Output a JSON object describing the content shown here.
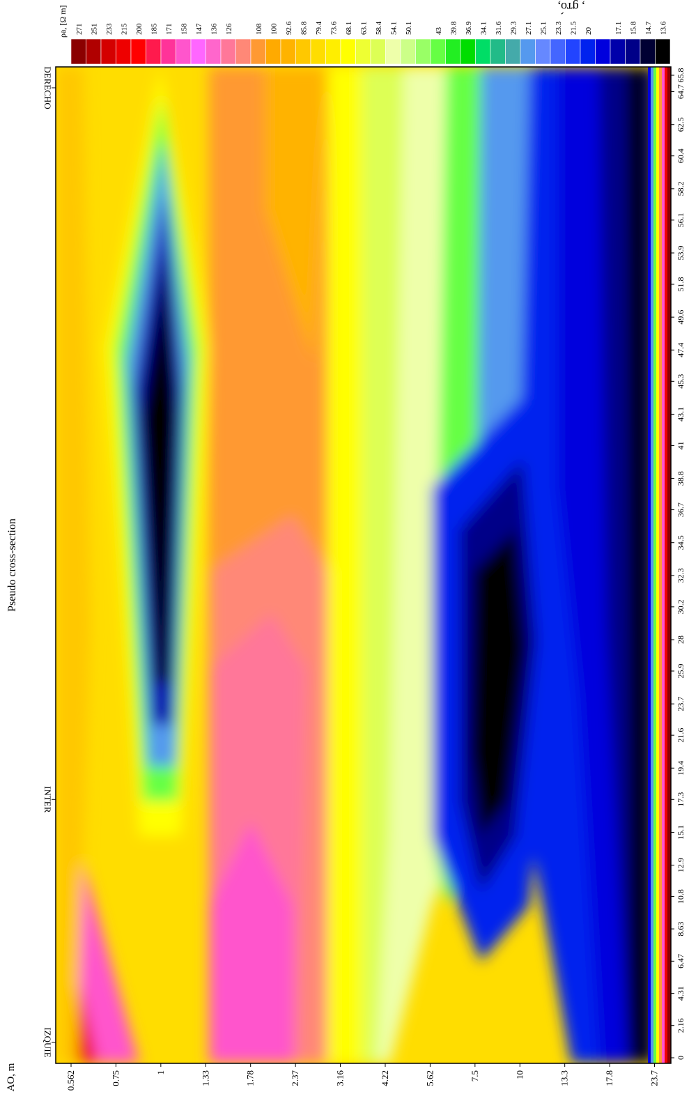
{
  "chart_data": {
    "type": "heatmap",
    "title": "Pseudo cross-section",
    "header_fragment": ", ɡто́,",
    "depth_axis": {
      "label": "AO, m",
      "ticks": [
        "0.562",
        "0.75",
        "1",
        "1.33",
        "1.78",
        "2.37",
        "3.16",
        "4.22",
        "5.62",
        "7.5",
        "10",
        "13.3",
        "17.8",
        "23.7"
      ]
    },
    "distance_axis": {
      "label": "",
      "ticks": [
        "0",
        "2.16",
        "4.31",
        "6.47",
        "8.63",
        "10.8",
        "12.9",
        "15.1",
        "17.3",
        "19.4",
        "21.6",
        "23.7",
        "25.9",
        "28",
        "30.2",
        "32.3",
        "34.5",
        "36.7",
        "38.8",
        "41",
        "43.1",
        "45.3",
        "47.4",
        "49.6",
        "51.8",
        "53.9",
        "56.1",
        "58.2",
        "60.4",
        "62.5",
        "64.7",
        "65.8"
      ]
    },
    "station_markers": [
      {
        "name": "IZQUIE",
        "distance": 0
      },
      {
        "name": "INTER",
        "distance": 17.3
      },
      {
        "name": "DERECHO",
        "distance": 65.8
      }
    ],
    "colorbar": {
      "label": "ρa, [Ω m]",
      "levels": [
        "271",
        "251",
        "233",
        "215",
        "200",
        "185",
        "171",
        "158",
        "147",
        "136",
        "126",
        "",
        "108",
        "100",
        "92.6",
        "85.8",
        "79.4",
        "73.6",
        "68.1",
        "63.1",
        "58.4",
        "54.1",
        "50.1",
        "",
        "43",
        "39.8",
        "36.9",
        "34.1",
        "31.6",
        "29.3",
        "27.1",
        "25.1",
        "23.3",
        "21.5",
        "20",
        "",
        "17.1",
        "15.8",
        "14.7",
        "13.6"
      ],
      "colors": [
        "#8b0000",
        "#b00000",
        "#d40000",
        "#ee0000",
        "#ff0000",
        "#ff1a4d",
        "#ff3399",
        "#ff55cc",
        "#ff66ff",
        "#ff66cc",
        "#ff7799",
        "#ff8877",
        "#ff9933",
        "#ffaa00",
        "#ffb300",
        "#ffc800",
        "#ffdd00",
        "#ffee00",
        "#ffff00",
        "#eeff33",
        "#ddff55",
        "#eeffaa",
        "#ccff88",
        "#99ff66",
        "#66ff44",
        "#22ee22",
        "#00dd00",
        "#00dd66",
        "#22bb88",
        "#44aaaa",
        "#5599ee",
        "#6688ff",
        "#4466ff",
        "#2244ff",
        "#0022ee",
        "#0000dd",
        "#0000aa",
        "#000088",
        "#000033",
        "#000000"
      ]
    },
    "value_range": [
      13.6,
      271
    ],
    "scale": "log"
  }
}
